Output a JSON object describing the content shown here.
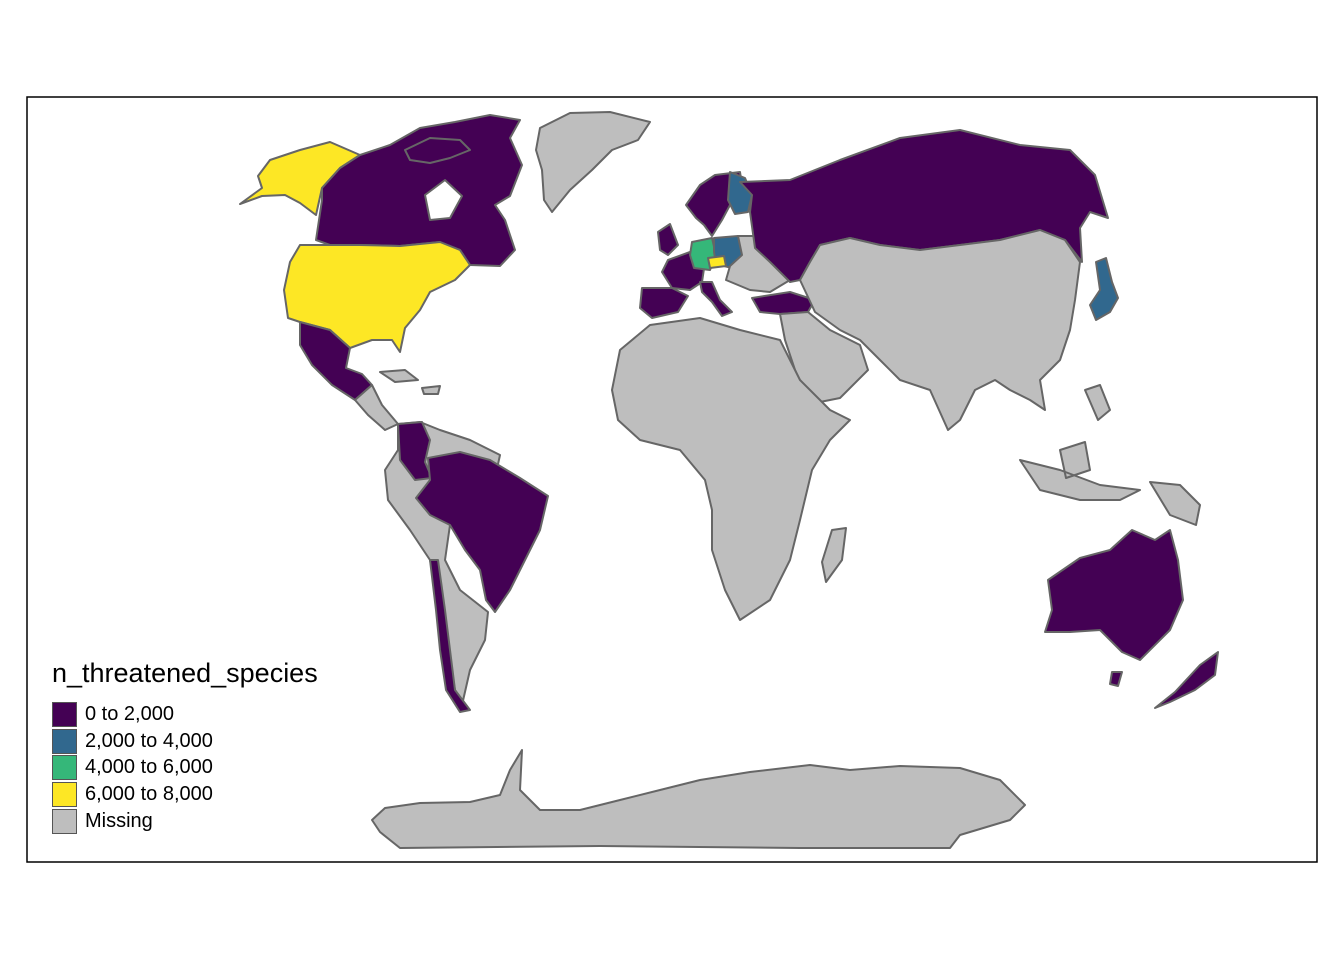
{
  "legend": {
    "title": "n_threatened_species",
    "items": [
      {
        "label": "0 to 2,000",
        "color": "#440154"
      },
      {
        "label": "2,000 to 4,000",
        "color": "#31688e"
      },
      {
        "label": "4,000 to 6,000",
        "color": "#35b779"
      },
      {
        "label": "6,000 to 8,000",
        "color": "#fde725"
      },
      {
        "label": "Missing",
        "color": "#bebebe"
      }
    ]
  },
  "regions": [
    {
      "name": "Alaska (United States)",
      "category": "6,000 to 8,000"
    },
    {
      "name": "Canada",
      "category": "0 to 2,000"
    },
    {
      "name": "Greenland",
      "category": "Missing"
    },
    {
      "name": "United States",
      "category": "6,000 to 8,000"
    },
    {
      "name": "Mexico",
      "category": "0 to 2,000"
    },
    {
      "name": "Central America",
      "category": "Missing"
    },
    {
      "name": "Colombia",
      "category": "0 to 2,000"
    },
    {
      "name": "Brazil",
      "category": "0 to 2,000"
    },
    {
      "name": "South America (other)",
      "category": "Missing"
    },
    {
      "name": "Chile",
      "category": "0 to 2,000"
    },
    {
      "name": "Norway / Sweden",
      "category": "0 to 2,000"
    },
    {
      "name": "Finland",
      "category": "2,000 to 4,000"
    },
    {
      "name": "Germany",
      "category": "4,000 to 6,000"
    },
    {
      "name": "Poland",
      "category": "2,000 to 4,000"
    },
    {
      "name": "Czechia",
      "category": "6,000 to 8,000"
    },
    {
      "name": "France",
      "category": "0 to 2,000"
    },
    {
      "name": "Spain",
      "category": "0 to 2,000"
    },
    {
      "name": "Italy",
      "category": "0 to 2,000"
    },
    {
      "name": "Turkey",
      "category": "0 to 2,000"
    },
    {
      "name": "Russia",
      "category": "0 to 2,000"
    },
    {
      "name": "Japan",
      "category": "2,000 to 4,000"
    },
    {
      "name": "Africa",
      "category": "Missing"
    },
    {
      "name": "Asia (other)",
      "category": "Missing"
    },
    {
      "name": "Australia",
      "category": "0 to 2,000"
    },
    {
      "name": "New Zealand",
      "category": "0 to 2,000"
    },
    {
      "name": "Antarctica",
      "category": "Missing"
    }
  ]
}
